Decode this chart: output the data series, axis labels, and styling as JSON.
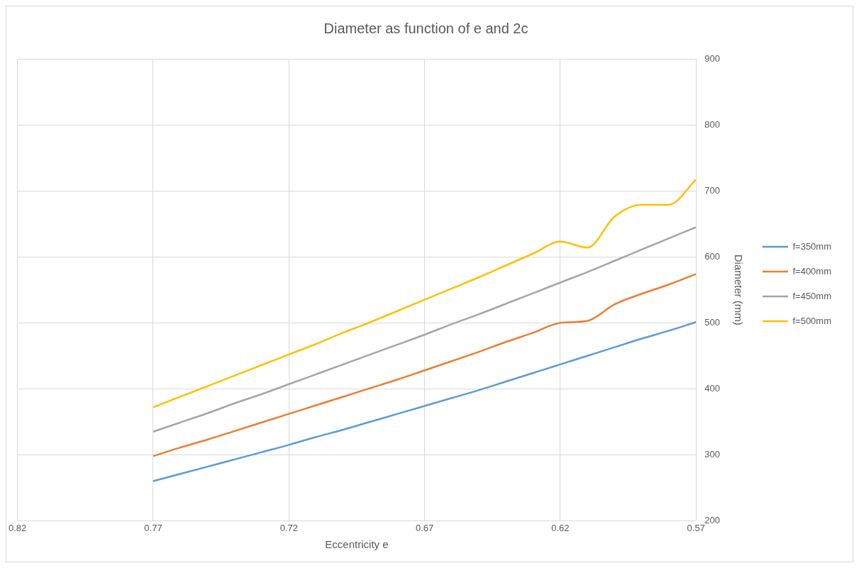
{
  "chart_data": {
    "type": "line",
    "title": "Diameter as function of e and 2c",
    "xlabel": "Eccentricity e",
    "ylabel": "Diameter (mm)",
    "x": [
      0.77,
      0.76,
      0.75,
      0.74,
      0.73,
      0.72,
      0.71,
      0.7,
      0.69,
      0.68,
      0.67,
      0.66,
      0.65,
      0.64,
      0.63,
      0.62,
      0.61,
      0.6,
      0.59,
      0.58,
      0.57
    ],
    "series": [
      {
        "name": "f=350mm",
        "color": "#5b9bd5",
        "values": [
          260,
          271,
          282,
          293,
          304,
          315,
          327,
          338,
          350,
          362,
          374,
          386,
          398,
          411,
          424,
          437,
          450,
          463,
          476,
          488,
          501
        ]
      },
      {
        "name": "f=400mm",
        "color": "#ed7d31",
        "values": [
          298,
          311,
          323,
          336,
          349,
          362,
          375,
          388,
          401,
          414,
          428,
          442,
          456,
          471,
          485,
          500,
          503,
          528,
          544,
          558,
          574
        ]
      },
      {
        "name": "f=450mm",
        "color": "#a5a5a5",
        "values": [
          335,
          349,
          363,
          378,
          392,
          407,
          422,
          437,
          452,
          467,
          482,
          498,
          513,
          529,
          545,
          561,
          577,
          594,
          611,
          628,
          645
        ]
      },
      {
        "name": "f=500mm",
        "color": "#ffc000",
        "values": [
          372,
          388,
          404,
          420,
          436,
          452,
          468,
          485,
          501,
          518,
          535,
          552,
          569,
          587,
          605,
          623,
          614,
          661,
          679,
          679,
          717
        ]
      }
    ],
    "xlim": [
      0.82,
      0.57
    ],
    "xticks": [
      0.82,
      0.77,
      0.72,
      0.67,
      0.62,
      0.57
    ],
    "ylim": [
      200,
      900
    ],
    "yticks": [
      200,
      300,
      400,
      500,
      600,
      700,
      800,
      900
    ],
    "grid": true,
    "legend": "right",
    "marker": "none",
    "line_style": "solid"
  }
}
